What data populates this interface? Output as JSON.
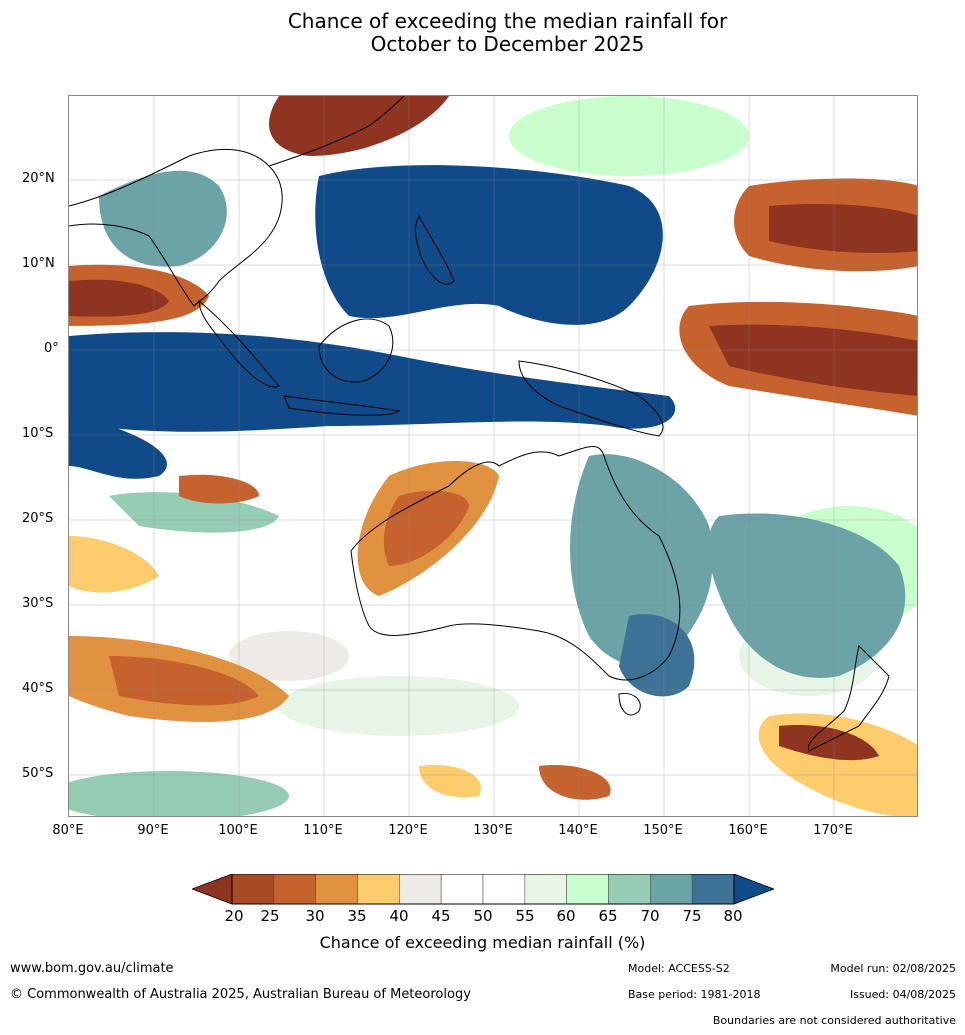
{
  "title_line1": "Chance of exceeding the median rainfall for",
  "title_line2": "October to December 2025",
  "lat_labels": [
    "20°N",
    "10°N",
    "0°",
    "10°S",
    "20°S",
    "30°S",
    "40°S",
    "50°S"
  ],
  "lon_labels": [
    "80°E",
    "90°E",
    "100°E",
    "110°E",
    "120°E",
    "130°E",
    "140°E",
    "150°E",
    "160°E",
    "170°E"
  ],
  "colorbar": {
    "ticks": [
      "20",
      "25",
      "30",
      "35",
      "40",
      "45",
      "50",
      "55",
      "60",
      "65",
      "70",
      "75",
      "80"
    ],
    "colors": [
      "#8f3420",
      "#a84a26",
      "#c6622e",
      "#e09240",
      "#fdcc6d",
      "#eeebe6",
      "#ffffff",
      "#ffffff",
      "#e6f5e6",
      "#c9ffcc",
      "#96ccb4",
      "#6ba3a6",
      "#3d7296",
      "#114a88"
    ],
    "label": "Chance of exceeding median rainfall (%)"
  },
  "footer": {
    "url": "www.bom.gov.au/climate",
    "copyright": "© Commonwealth of Australia 2025, Australian Bureau of Meteorology",
    "model": "Model: ACCESS-S2",
    "base_period": "Base period: 1981-2018",
    "model_run": "Model run: 02/08/2025",
    "issued": "Issued: 04/08/2025",
    "disclaimer": "Boundaries are not considered authoritative"
  }
}
